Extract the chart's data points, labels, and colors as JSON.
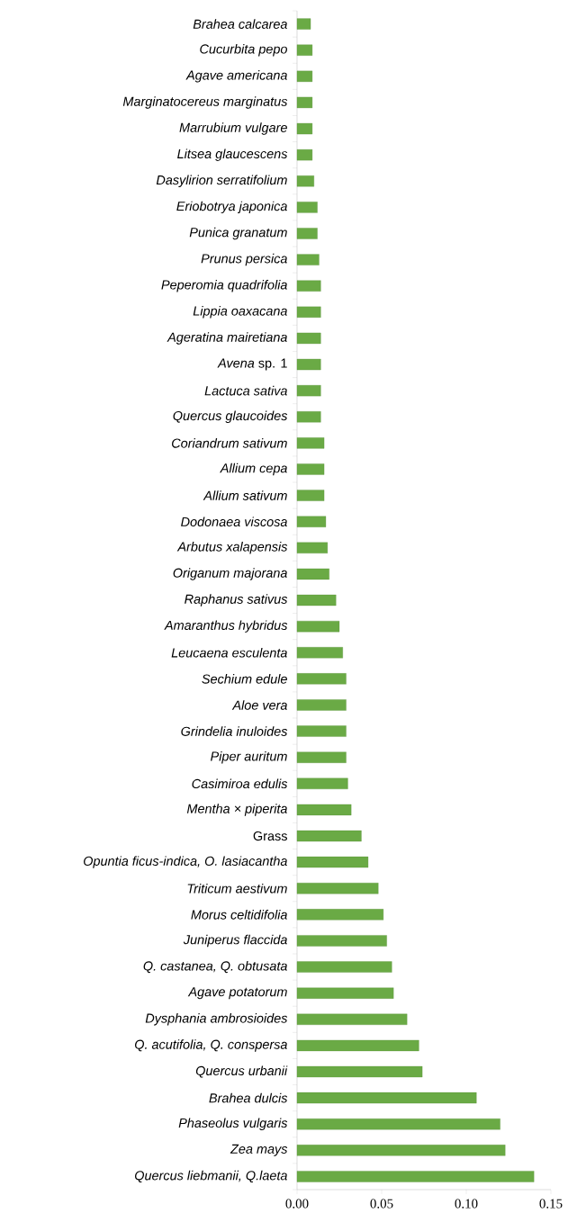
{
  "chart_data": {
    "type": "bar",
    "orientation": "horizontal",
    "color": "#6aaa45",
    "categories": [
      "*Brahea calcarea*",
      "*Cucurbita pepo*",
      "*Agave americana*",
      "*Marginatocereus marginatus*",
      "*Marrubium vulgare*",
      "*Litsea glaucescens*",
      "*Dasylirion serratifolium*",
      "*Eriobotrya japonica*",
      "*Punica granatum*",
      "*Prunus persica*",
      "*Peperomia quadrifolia*",
      "*Lippia oaxacana*",
      "*Ageratina mairetiana*",
      "*Avena* sp. 1",
      "*Lactuca sativa*",
      "*Quercus glaucoides*",
      "*Coriandrum sativum*",
      "*Allium cepa*",
      "*Allium sativum*",
      "*Dodonaea viscosa*",
      "*Arbutus xalapensis*",
      "*Origanum majorana*",
      "*Raphanus sativus*",
      "*Amaranthus hybridus*",
      "*Leucaena esculenta*",
      "*Sechium edule*",
      "*Aloe vera*",
      "*Grindelia inuloides*",
      "*Piper auritum*",
      "*Casimiroa edulis*",
      "*Mentha × piperita*",
      "Grass",
      "*Opuntia ficus-indica, O. lasiacantha*",
      "*Triticum aestivum*",
      "*Morus celtidifolia*",
      "*Juniperus flaccida*",
      "*Q. castanea, Q. obtusata*",
      "*Agave potatorum*",
      "*Dysphania ambrosioides*",
      "*Q. acutifolia, Q. conspersa*",
      "*Quercus urbanii*",
      "*Brahea dulcis*",
      "*Phaseolus vulgaris*",
      "*Zea mays*",
      "*Quercus liebmanii, Q.laeta*"
    ],
    "values": [
      0.008,
      0.009,
      0.009,
      0.009,
      0.009,
      0.009,
      0.01,
      0.012,
      0.012,
      0.013,
      0.014,
      0.014,
      0.014,
      0.014,
      0.014,
      0.014,
      0.016,
      0.016,
      0.016,
      0.017,
      0.018,
      0.019,
      0.023,
      0.025,
      0.027,
      0.029,
      0.029,
      0.029,
      0.029,
      0.03,
      0.032,
      0.038,
      0.042,
      0.048,
      0.051,
      0.053,
      0.056,
      0.057,
      0.065,
      0.072,
      0.074,
      0.106,
      0.12,
      0.123,
      0.14
    ],
    "xlim": [
      0,
      0.15
    ],
    "xticks": [
      {
        "value": 0,
        "label": "0.00"
      },
      {
        "value": 0.05,
        "label": "0.05"
      },
      {
        "value": 0.1,
        "label": "0.10"
      },
      {
        "value": 0.15,
        "label": "0.15"
      }
    ],
    "grid": false
  }
}
